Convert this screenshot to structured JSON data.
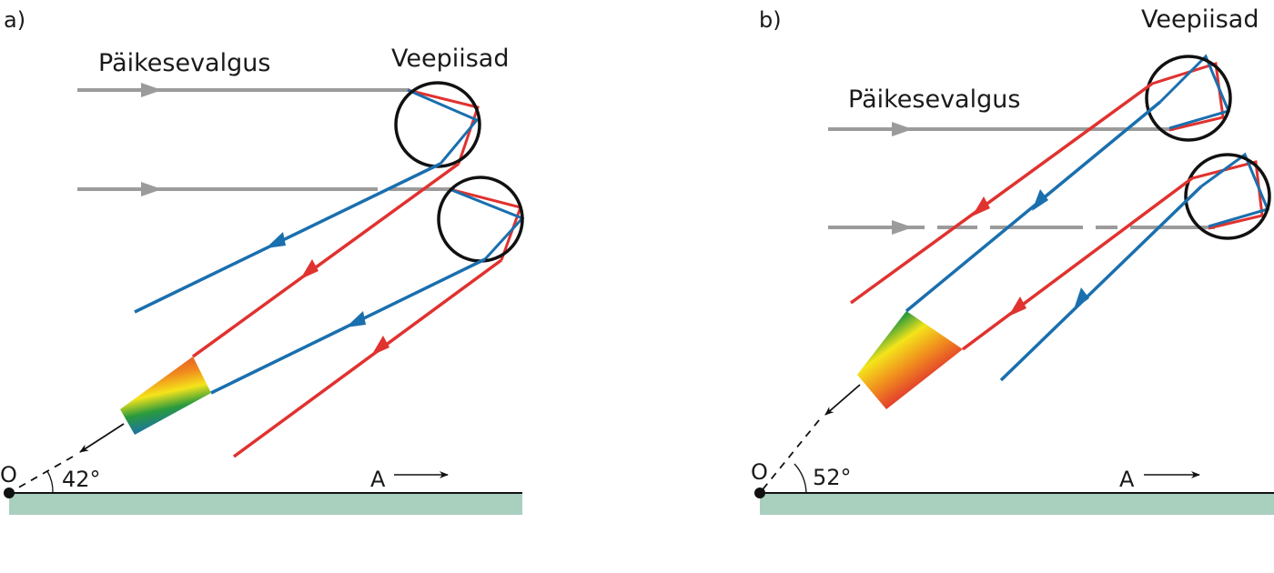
{
  "panels": [
    {
      "label": "a)",
      "sunlight_label": "Päikesevalgus",
      "droplets_label": "Veepiisad",
      "observer_label": "O",
      "angle_label": "42°",
      "direction_label": "A"
    },
    {
      "label": "b)",
      "sunlight_label": "Päikesevalgus",
      "droplets_label": "Veepiisad",
      "observer_label": "O",
      "angle_label": "52°",
      "direction_label": "A"
    }
  ],
  "colors": {
    "sunlight": "#9b9b9b",
    "red_ray": "#e0322f",
    "blue_ray": "#1a6fae",
    "droplet": "#111111",
    "ground": "#a9cfbf"
  }
}
